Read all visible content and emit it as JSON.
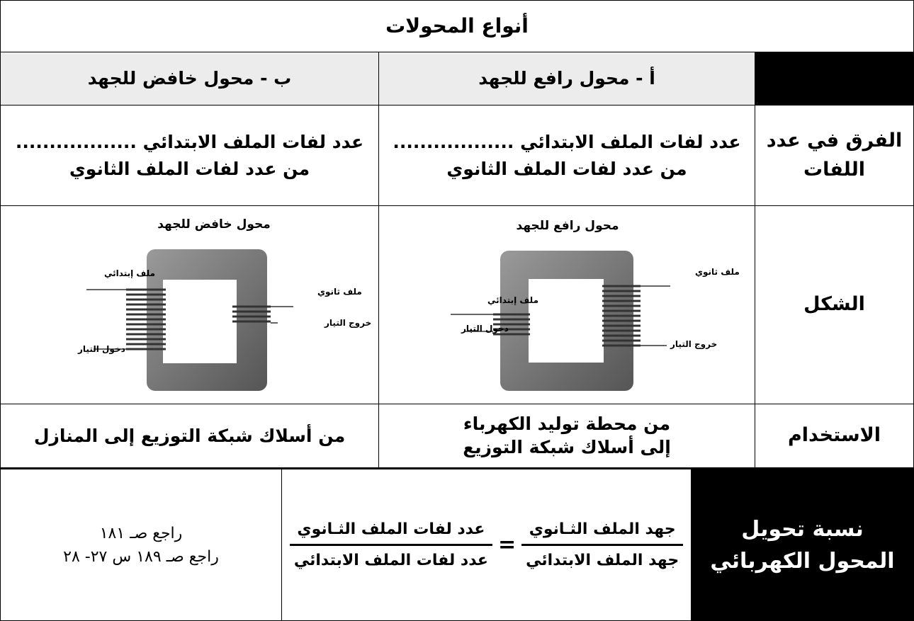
{
  "title": "أنواع المحولات",
  "columns": {
    "step_up": "أ - محول رافع للجهد",
    "step_down": "ب - محول خافض للجهد"
  },
  "rows": {
    "turns": {
      "label": [
        "الفرق في عدد",
        "اللفات"
      ],
      "step_up": [
        "عدد لفات الملف الابتدائي ..................",
        "من  عدد لفات الملف الثانوي"
      ],
      "step_down": [
        "عدد لفات الملف الابتدائي ..................",
        "من  عدد لفات الملف الثانوي"
      ]
    },
    "shape": {
      "label": "الشكل",
      "step_up": {
        "title": "محول رافع للجهد",
        "secondary": "ملف ثانوي",
        "primary": "ملف إبتدائي",
        "input": "دخول التيار",
        "output": "خروج التيار"
      },
      "step_down": {
        "title": "محول خافض للجهد",
        "primary": "ملف إبتدائي",
        "secondary": "ملف ثانوي",
        "output": "خروج التيار",
        "input": "دخول التيار"
      }
    },
    "use": {
      "label": "الاستخدام",
      "step_up": [
        "من محطة توليد الكهرباء",
        "إلى  أسلاك شبكة التوزيع"
      ],
      "step_down": "من أسلاك شبكة التوزيع إلى المنازل"
    }
  },
  "ratio": {
    "label": [
      "نسبة تحويل",
      "المحول الكهربائي"
    ],
    "voltage_secondary": "جهد الملف الثـانوي",
    "voltage_primary": "جهد الملف الابتدائي",
    "equals": "=",
    "turns_secondary": "عدد لفات الملف الثـانوي",
    "turns_primary": "عدد لفات الملف الابتدائي",
    "refs": [
      "راجع صـ ١٨١",
      "راجع صـ ١٨٩   س ٢٧- ٢٨"
    ]
  }
}
